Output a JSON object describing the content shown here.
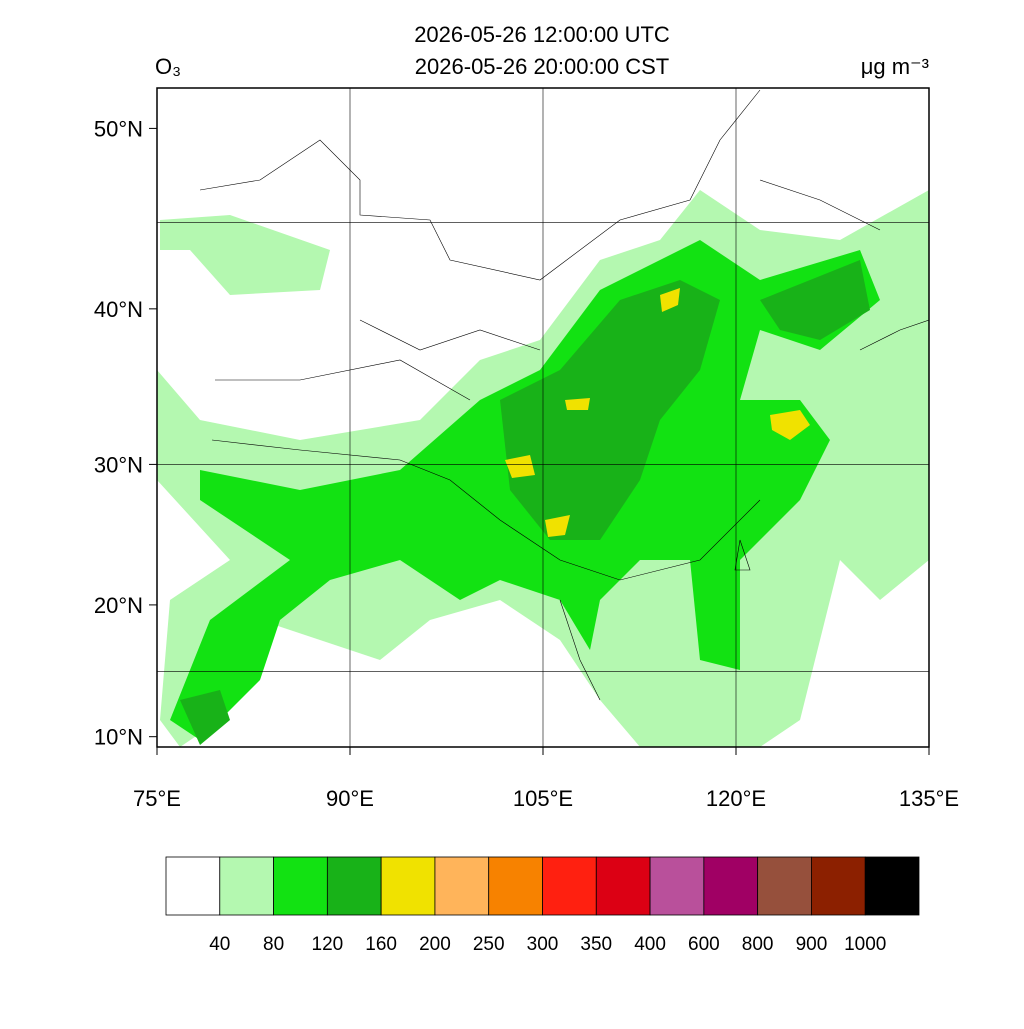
{
  "chart_data": {
    "type": "map",
    "title": "2026-05-26 12:00:00 UTC",
    "subtitle": "2026-05-26 20:00:00 CST",
    "variable": "O₃",
    "units": "μg m⁻³",
    "xlim": [
      75,
      135
    ],
    "ylim": [
      9.2,
      52
    ],
    "xticks": [
      {
        "value": 75,
        "label": "75°E"
      },
      {
        "value": 90,
        "label": "90°E"
      },
      {
        "value": 105,
        "label": "105°E"
      },
      {
        "value": 120,
        "label": "120°E"
      },
      {
        "value": 135,
        "label": "135°E"
      }
    ],
    "yticks": [
      {
        "value": 10,
        "label": "10°N"
      },
      {
        "value": 20,
        "label": "20°N"
      },
      {
        "value": 30,
        "label": "30°N"
      },
      {
        "value": 40,
        "label": "40°N"
      },
      {
        "value": 50,
        "label": "50°N"
      }
    ],
    "grid_lon": [
      90,
      105,
      120
    ],
    "grid_lat": [
      15,
      30,
      45
    ],
    "colorbar": {
      "levels": [
        40,
        80,
        120,
        160,
        200,
        250,
        300,
        350,
        400,
        600,
        800,
        900,
        1000
      ],
      "colors": [
        "#ffffff",
        "#b4f8b0",
        "#12e212",
        "#18b218",
        "#f0e200",
        "#ffb45a",
        "#f78200",
        "#ff2010",
        "#dc0014",
        "#b9509b",
        "#a00064",
        "#96503c",
        "#8c2000",
        "#000000"
      ]
    }
  }
}
